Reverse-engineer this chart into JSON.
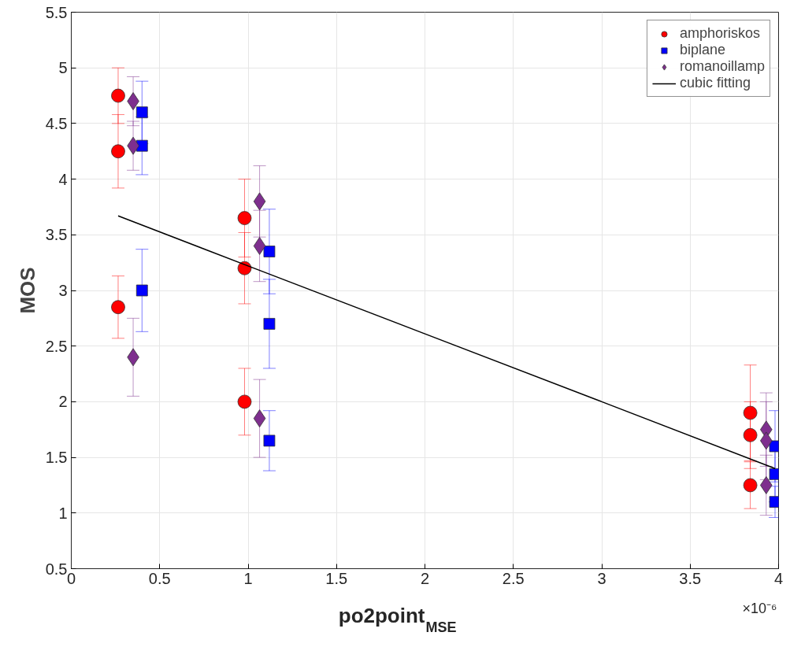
{
  "chart_data": {
    "type": "scatter",
    "xlabel": "po2point$_{MSE}$",
    "ylabel": "MOS",
    "xlim": [
      0,
      4
    ],
    "xticks": [
      0,
      0.5,
      1,
      1.5,
      2,
      2.5,
      3,
      3.5,
      4
    ],
    "ylim": [
      0.5,
      5.5
    ],
    "yticks": [
      0.5,
      1,
      1.5,
      2,
      2.5,
      3,
      3.5,
      4,
      4.5,
      5,
      5.5
    ],
    "grid": true,
    "legend": "top right",
    "annotations": [
      "×10⁻⁶"
    ],
    "series": [
      {
        "name": "amphoriskos",
        "color": "#ff0000",
        "marker": "circle",
        "x": [
          0.265,
          0.265,
          0.265,
          0.98,
          0.98,
          0.98,
          3.84,
          3.84,
          3.84
        ],
        "values": [
          4.75,
          4.25,
          2.85,
          3.65,
          3.2,
          2.0,
          1.9,
          1.7,
          1.25
        ],
        "errors": [
          0.25,
          0.33,
          0.28,
          0.35,
          0.32,
          0.3,
          0.43,
          0.3,
          0.21
        ]
      },
      {
        "name": "biplane",
        "color": "#0000ff",
        "marker": "square",
        "x": [
          0.4,
          0.4,
          0.4,
          1.12,
          1.12,
          1.12,
          3.98,
          3.98,
          3.98
        ],
        "values": [
          4.6,
          4.3,
          3.0,
          3.35,
          2.7,
          1.65,
          1.6,
          1.35,
          1.1
        ],
        "errors": [
          0.28,
          0.26,
          0.37,
          0.38,
          0.4,
          0.27,
          0.32,
          0.25,
          0.14
        ]
      },
      {
        "name": "romanoillamp",
        "color": "#7e2f8e",
        "marker": "diamond",
        "x": [
          0.35,
          0.35,
          0.35,
          1.065,
          1.065,
          1.065,
          3.93,
          3.93,
          3.93
        ],
        "values": [
          4.7,
          4.3,
          2.4,
          3.8,
          3.4,
          1.85,
          1.75,
          1.65,
          1.25
        ],
        "errors": [
          0.22,
          0.22,
          0.35,
          0.32,
          0.32,
          0.35,
          0.33,
          0.35,
          0.27
        ]
      },
      {
        "name": "cubic fitting",
        "type": "line",
        "color": "#000000",
        "marker": "none",
        "line_style": "solid",
        "x": [
          0.265,
          1,
          2,
          3,
          3.98
        ],
        "values": [
          3.67,
          3.22,
          2.61,
          2.0,
          1.4
        ]
      }
    ]
  }
}
